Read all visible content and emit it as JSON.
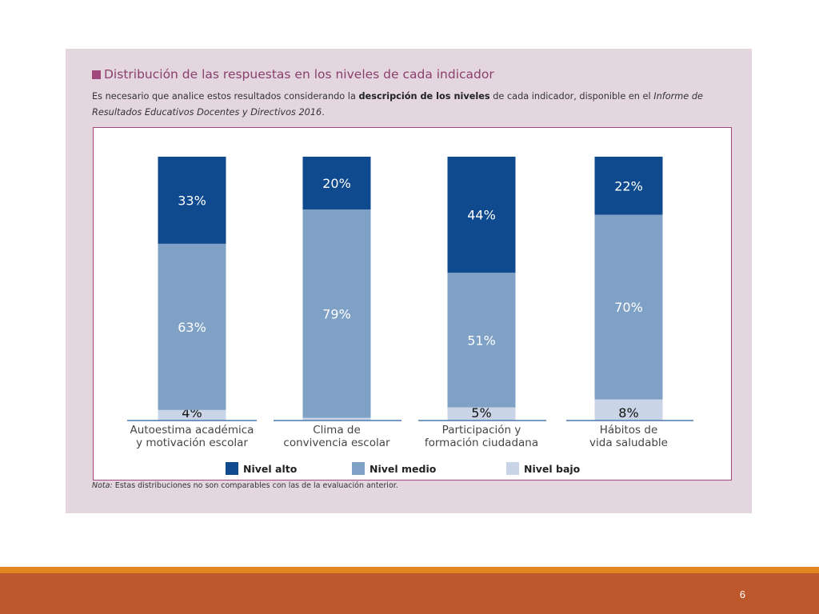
{
  "slide": {
    "title": "Distribución de las respuestas en los niveles de cada indicador",
    "description_parts": {
      "p1": "Es necesario que analice estos resultados considerando la ",
      "bold": "descripción de los niveles",
      "p2": " de cada indicador, disponible en el ",
      "italic": "Informe de Resultados Educativos Docentes y Directivos 2016",
      "p3": "."
    },
    "note_label": "Nota:",
    "note_text": " Estas distribuciones no son comparables con las de la evaluación anterior.",
    "page_number": "6"
  },
  "colors": {
    "accent": "#a0487c",
    "panel": "#e3d6df",
    "footer_bar": "#bd582c",
    "footer_line": "#e3861f"
  },
  "chart_data": {
    "type": "bar",
    "stacked": true,
    "value_unit": "%",
    "categories": [
      [
        "Autoestima académica",
        "y motivación escolar"
      ],
      [
        "Clima de",
        "convivencia escolar"
      ],
      [
        "Participación y",
        "formación ciudadana"
      ],
      [
        "Hábitos de",
        "vida saludable"
      ]
    ],
    "series": [
      {
        "name": "Nivel bajo",
        "color": "#c9d5e6",
        "values": [
          4,
          1,
          5,
          8
        ]
      },
      {
        "name": "Nivel medio",
        "color": "#7fa1c6",
        "values": [
          63,
          79,
          51,
          70
        ]
      },
      {
        "name": "Nivel alto",
        "color": "#0f4a8e",
        "values": [
          33,
          20,
          44,
          22
        ]
      }
    ],
    "legend_order": [
      "Nivel alto",
      "Nivel medio",
      "Nivel bajo"
    ],
    "legend_position": "bottom",
    "ylim": [
      0,
      100
    ]
  }
}
